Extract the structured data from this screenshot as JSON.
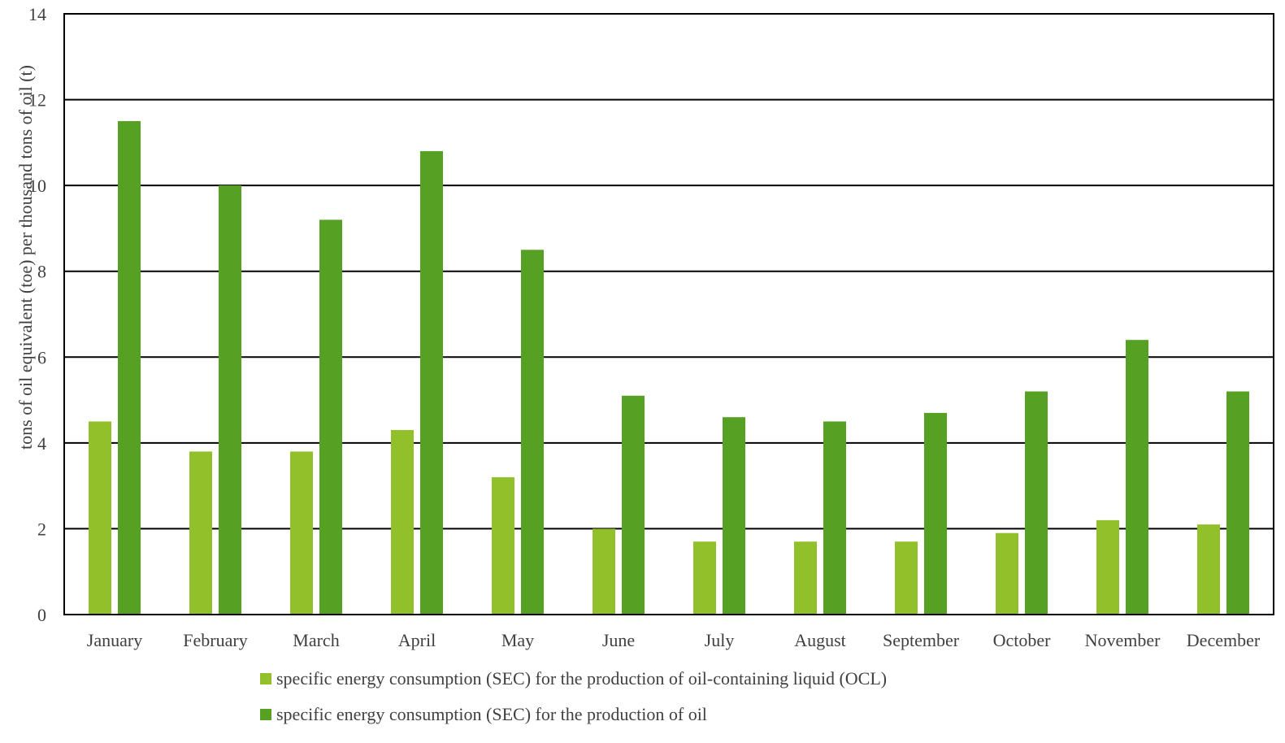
{
  "chart_data": {
    "type": "bar",
    "title": "",
    "xlabel": "",
    "ylabel": "tons of oil equivalent (toe) per thousand tons of oil (t)",
    "ylim": [
      0,
      14
    ],
    "yticks": [
      "0",
      "2",
      "4",
      "6",
      "8",
      "10",
      "12",
      "14"
    ],
    "grid": true,
    "legend_position": "bottom",
    "categories": [
      "January",
      "February",
      "March",
      "April",
      "May",
      "June",
      "July",
      "August",
      "September",
      "October",
      "November",
      "December"
    ],
    "series": [
      {
        "name": "specific energy consumption (SEC) for the production of oil-containing liquid (OCL)",
        "color": "#92c02a",
        "values": [
          4.5,
          3.8,
          3.8,
          4.3,
          3.2,
          2.0,
          1.7,
          1.7,
          1.7,
          1.9,
          2.2,
          2.1
        ]
      },
      {
        "name": "specific energy consumption (SEC) for the production of oil",
        "color": "#56a024",
        "values": [
          11.5,
          10.0,
          9.2,
          10.8,
          8.5,
          5.1,
          4.6,
          4.5,
          4.7,
          5.2,
          6.4,
          5.2
        ]
      }
    ]
  }
}
